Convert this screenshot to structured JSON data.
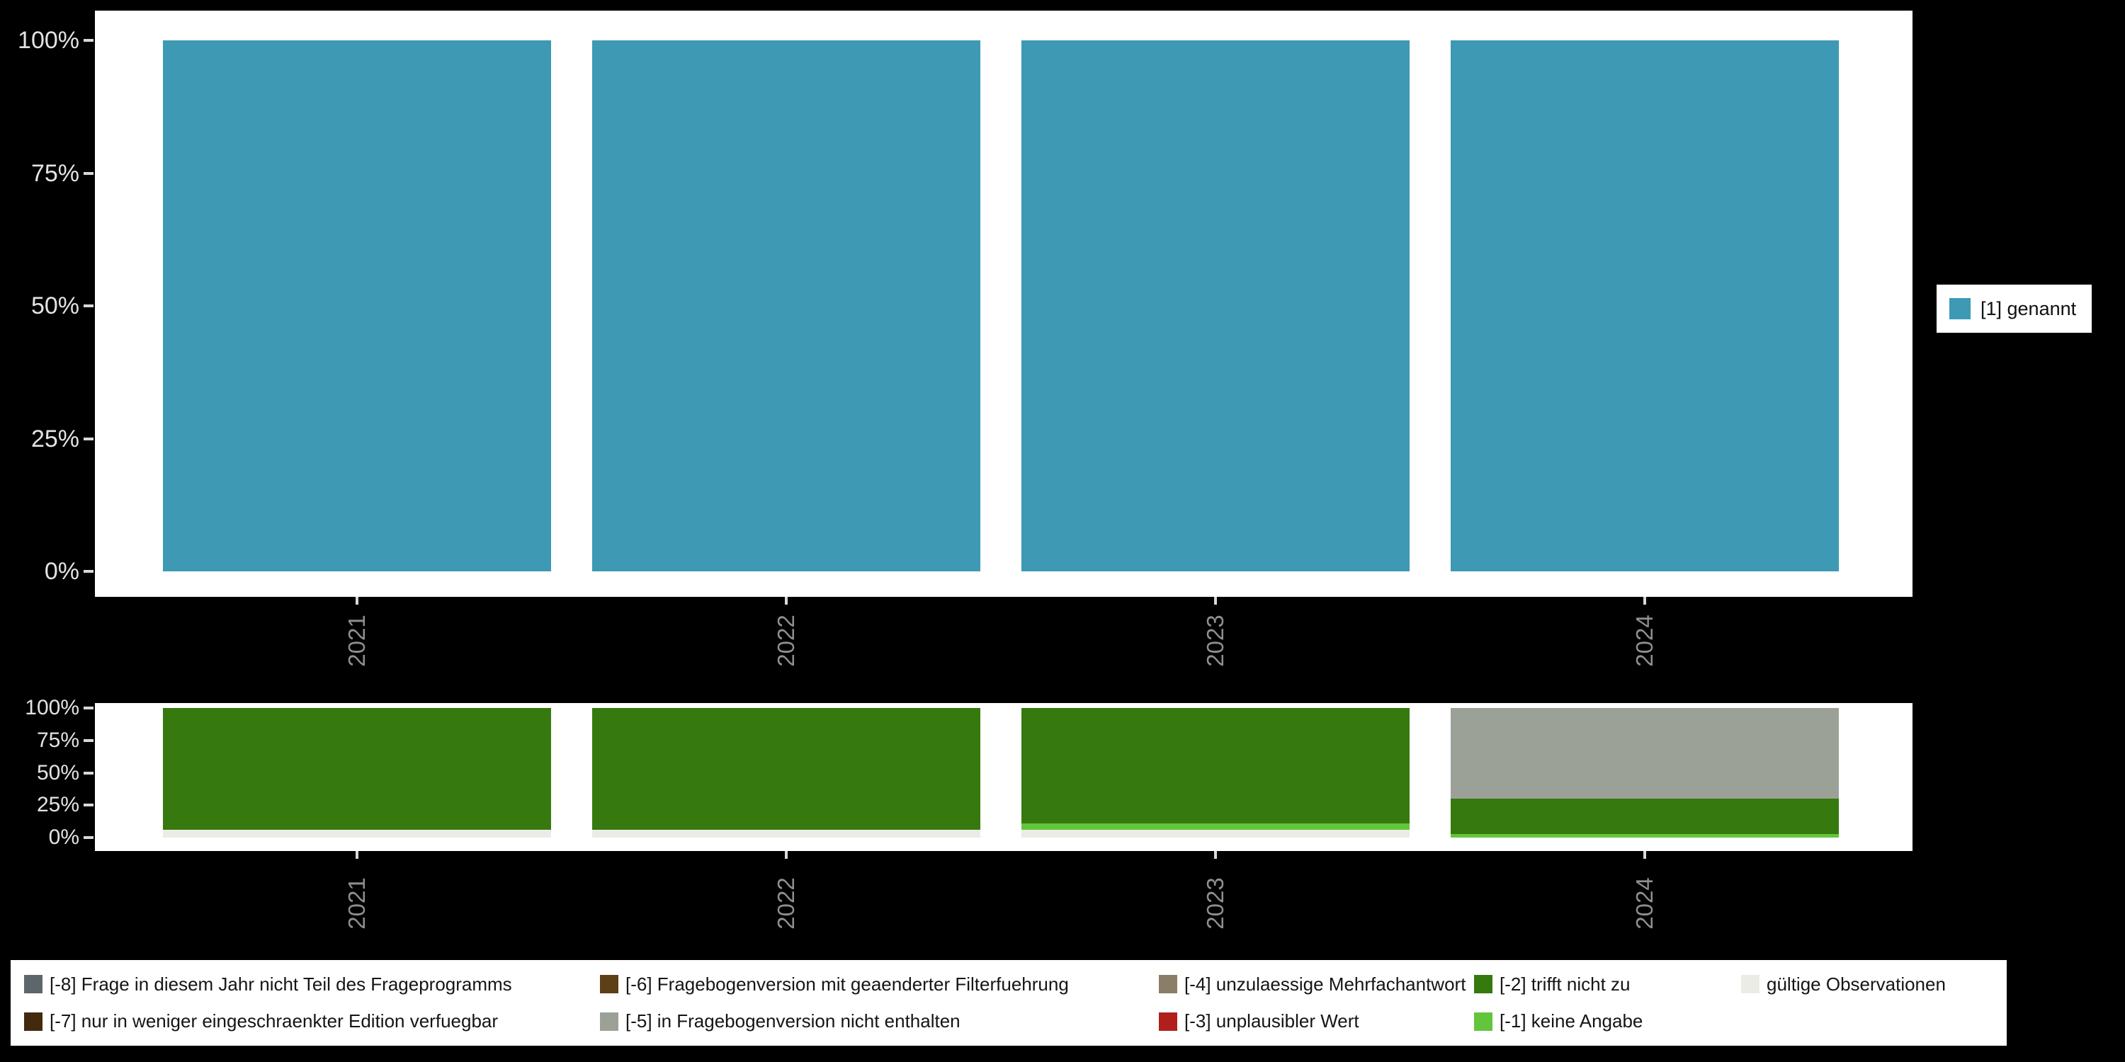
{
  "page": {
    "background": "#000000",
    "panel_background": "#FFFFFF"
  },
  "chart_data": [
    {
      "type": "bar",
      "title": "",
      "categories": [
        "2021",
        "2022",
        "2023",
        "2024"
      ],
      "ylim": [
        0,
        100
      ],
      "yticks": [
        {
          "value": 0,
          "label": "0%"
        },
        {
          "value": 25,
          "label": "25%"
        },
        {
          "value": 50,
          "label": "50%"
        },
        {
          "value": 75,
          "label": "75%"
        },
        {
          "value": 100,
          "label": "100%"
        }
      ],
      "grid": false,
      "legend_position": "right",
      "series": [
        {
          "name": "[1] genannt",
          "color": "#3D99B4",
          "values": [
            100,
            100,
            100,
            100
          ]
        }
      ]
    },
    {
      "type": "stacked-bar",
      "title": "",
      "categories": [
        "2021",
        "2022",
        "2023",
        "2024"
      ],
      "ylim": [
        0,
        100
      ],
      "yticks": [
        {
          "value": 0,
          "label": "0%"
        },
        {
          "value": 25,
          "label": "25%"
        },
        {
          "value": 50,
          "label": "50%"
        },
        {
          "value": 75,
          "label": "75%"
        },
        {
          "value": 100,
          "label": "100%"
        }
      ],
      "grid": false,
      "legend_position": "bottom",
      "series": [
        {
          "name": "[-8] Frage in diesem Jahr nicht Teil des Frageprogramms",
          "color": "#5C666B",
          "values": [
            0,
            0,
            0,
            0
          ]
        },
        {
          "name": "[-7] nur in weniger eingeschraenkter Edition verfuegbar",
          "color": "#43290E",
          "values": [
            0,
            0,
            0,
            0
          ]
        },
        {
          "name": "[-6] Fragebogenversion mit geaenderter Filterfuehrung",
          "color": "#5E4016",
          "values": [
            0,
            0,
            0,
            0
          ]
        },
        {
          "name": "[-5] in Fragebogenversion nicht enthalten",
          "color": "#9CA198",
          "values": [
            0,
            0,
            0,
            70
          ]
        },
        {
          "name": "[-4] unzulaessige Mehrfachantwort",
          "color": "#8C7D69",
          "values": [
            0,
            0,
            0,
            0
          ]
        },
        {
          "name": "[-3] unplausibler Wert",
          "color": "#B01F1C",
          "values": [
            0,
            0,
            0,
            0
          ]
        },
        {
          "name": "[-2] trifft nicht zu",
          "color": "#36790F",
          "values": [
            94,
            94,
            89,
            27
          ]
        },
        {
          "name": "[-1] keine Angabe",
          "color": "#63C53C",
          "values": [
            0,
            0,
            5,
            3
          ]
        },
        {
          "name": "gültige Observationen",
          "color": "#ECECE6",
          "values": [
            6,
            6,
            6,
            0
          ]
        }
      ]
    }
  ]
}
